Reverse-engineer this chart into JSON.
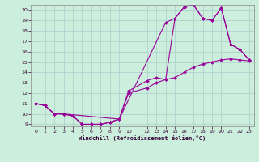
{
  "xlabel": "Windchill (Refroidissement éolien,°C)",
  "bg_color": "#cceedd",
  "grid_color": "#aacccc",
  "line_color": "#990099",
  "marker_color": "#990099",
  "xlim": [
    -0.5,
    23.5
  ],
  "ylim": [
    8.8,
    20.5
  ],
  "xticks": [
    0,
    1,
    2,
    3,
    4,
    5,
    6,
    7,
    8,
    9,
    10,
    12,
    13,
    14,
    15,
    16,
    17,
    18,
    19,
    20,
    21,
    22,
    23
  ],
  "yticks": [
    9,
    10,
    11,
    12,
    13,
    14,
    15,
    16,
    17,
    18,
    19,
    20
  ],
  "curve1_x": [
    0,
    1,
    2,
    3,
    4,
    5,
    6,
    7,
    8,
    9,
    14,
    15,
    16,
    17,
    18,
    19,
    20,
    21,
    22,
    23
  ],
  "curve1_y": [
    11.0,
    10.8,
    10.0,
    10.0,
    9.8,
    9.0,
    9.0,
    9.0,
    9.2,
    9.5,
    18.8,
    19.2,
    20.3,
    20.5,
    19.2,
    19.0,
    20.2,
    16.7,
    16.2,
    15.2
  ],
  "curve2_x": [
    0,
    1,
    2,
    3,
    4,
    5,
    6,
    7,
    8,
    9,
    10,
    12,
    13,
    14,
    15,
    16,
    17,
    18,
    19,
    20,
    21,
    22,
    23
  ],
  "curve2_y": [
    11.0,
    10.8,
    10.0,
    10.0,
    9.8,
    9.0,
    9.0,
    9.0,
    9.2,
    9.5,
    12.0,
    12.5,
    13.0,
    13.3,
    13.5,
    14.0,
    14.5,
    14.8,
    15.0,
    15.2,
    15.3,
    15.2,
    15.1
  ],
  "curve3_x": [
    0,
    1,
    2,
    3,
    9,
    10,
    12,
    13,
    14,
    15,
    16,
    17,
    18,
    19,
    20,
    21,
    22,
    23
  ],
  "curve3_y": [
    11.0,
    10.8,
    10.0,
    10.0,
    9.5,
    12.2,
    13.2,
    13.5,
    13.3,
    19.2,
    20.3,
    20.5,
    19.2,
    19.0,
    20.2,
    16.7,
    16.2,
    15.2
  ]
}
